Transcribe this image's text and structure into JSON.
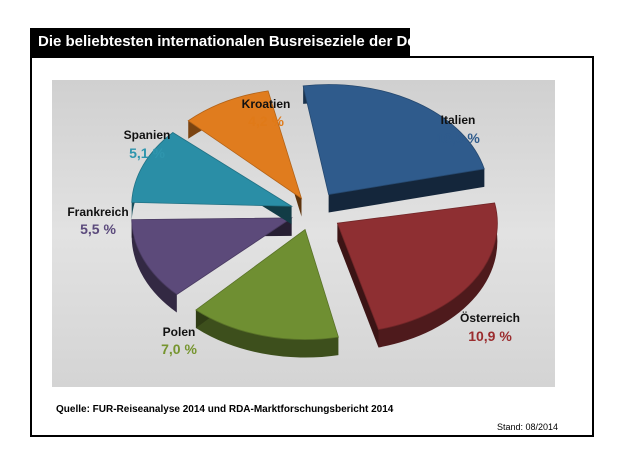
{
  "title": "Die beliebtesten internationalen Busreiseziele der Deutschen",
  "source": "Quelle: FUR-Reiseanalyse 2014 und RDA-Marktforschungsbericht 2014",
  "stand": "Stand: 08/2014",
  "chart_data": {
    "type": "pie",
    "title": "Die beliebtesten internationalen Busreiseziele der Deutschen",
    "exploded": true,
    "slices": [
      {
        "label": "Italien",
        "value": 10.9,
        "value_label": "10,9 %",
        "color": "#2f5b8c",
        "text_color": "#2f5b8c"
      },
      {
        "label": "Österreich",
        "value": 10.9,
        "value_label": "10,9 %",
        "color": "#8e2f32",
        "text_color": "#9b2c2e"
      },
      {
        "label": "Polen",
        "value": 7.0,
        "value_label": "7,0 %",
        "color": "#6f8f32",
        "text_color": "#76952f"
      },
      {
        "label": "Frankreich",
        "value": 5.5,
        "value_label": "5,5 %",
        "color": "#5c4a7a",
        "text_color": "#5b4a7c"
      },
      {
        "label": "Spanien",
        "value": 5.1,
        "value_label": "5,1 %",
        "color": "#2a8ea6",
        "text_color": "#2f95ad"
      },
      {
        "label": "Kroatien",
        "value": 4.2,
        "value_label": "4,2 %",
        "color": "#e07c1e",
        "text_color": "#e07a18"
      }
    ]
  }
}
